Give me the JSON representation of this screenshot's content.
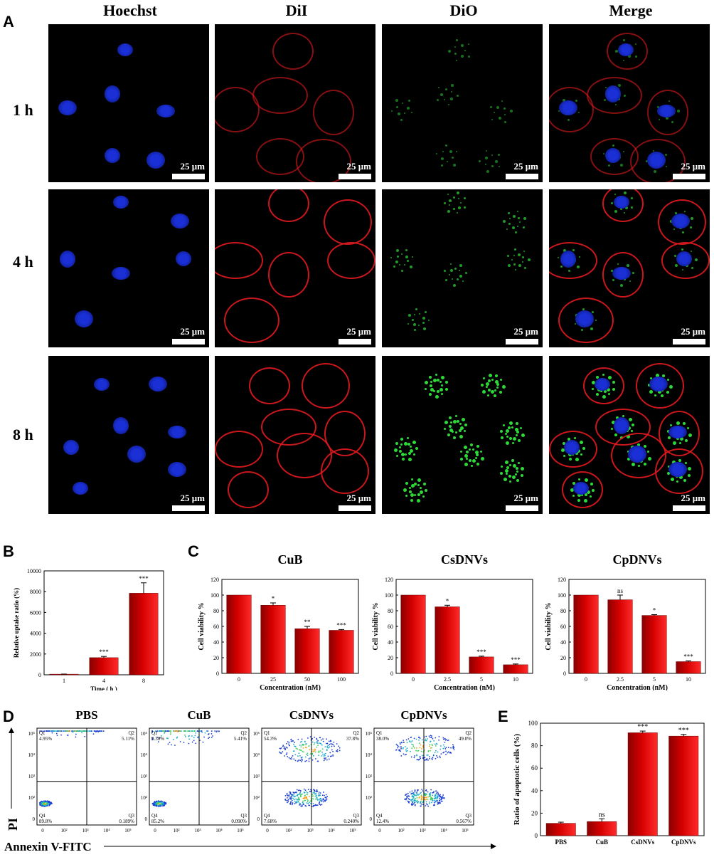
{
  "panels": {
    "A": "A",
    "B": "B",
    "C": "C",
    "D": "D",
    "E": "E"
  },
  "panel_a": {
    "columns": [
      "Hoechst",
      "DiI",
      "DiO",
      "Merge"
    ],
    "rows": [
      "1 h",
      "4 h",
      "8 h"
    ],
    "scale_bar": "25 μm",
    "colors": {
      "hoechst": "#1a2fd6",
      "dii": "#e0191e",
      "dio": "#2ee63a"
    }
  },
  "chart_data": [
    {
      "panel": "B",
      "type": "bar",
      "categories": [
        "1",
        "4",
        "8"
      ],
      "values": [
        60,
        1650,
        7850
      ],
      "errors": [
        10,
        120,
        1000
      ],
      "significance": [
        "",
        "***",
        "***"
      ],
      "xlabel": "Time ( h )",
      "ylabel": "Relative uptake ratio (%)",
      "ylim": [
        0,
        10000
      ],
      "yticks": [
        "0",
        "2000",
        "4000",
        "6000",
        "8000",
        "10000"
      ],
      "color": "#d40000"
    },
    {
      "panel": "C",
      "type": "bar",
      "title": "CuB",
      "categories": [
        "0",
        "25",
        "50",
        "100"
      ],
      "values": [
        100,
        87,
        57,
        55
      ],
      "errors": [
        0,
        3,
        3,
        1
      ],
      "significance": [
        "",
        "*",
        "**",
        "***"
      ],
      "xlabel": "Concentration (nM)",
      "ylabel": "Cell viability %",
      "ylim": [
        0,
        120
      ],
      "yticks": [
        "0",
        "20",
        "40",
        "60",
        "80",
        "100",
        "120"
      ],
      "color": "#d40000"
    },
    {
      "panel": "C",
      "type": "bar",
      "title": "CsDNVs",
      "categories": [
        "0",
        "2.5",
        "5",
        "10"
      ],
      "values": [
        100,
        85,
        21,
        11
      ],
      "errors": [
        0,
        2,
        1,
        1
      ],
      "significance": [
        "",
        "*",
        "***",
        "***"
      ],
      "xlabel": "Concentration (nM)",
      "ylabel": "Cell viability %",
      "ylim": [
        0,
        120
      ],
      "yticks": [
        "0",
        "20",
        "40",
        "60",
        "80",
        "100",
        "120"
      ],
      "color": "#d40000"
    },
    {
      "panel": "C",
      "type": "bar",
      "title": "CpDNVs",
      "categories": [
        "0",
        "2.5",
        "5",
        "10"
      ],
      "values": [
        100,
        94,
        74,
        15
      ],
      "errors": [
        0,
        6,
        1,
        1
      ],
      "significance": [
        "",
        "ns",
        "*",
        "***"
      ],
      "xlabel": "Concentration (nM)",
      "ylabel": "Cell viability %",
      "ylim": [
        0,
        120
      ],
      "yticks": [
        "0",
        "20",
        "40",
        "60",
        "80",
        "100",
        "120"
      ],
      "color": "#d40000"
    },
    {
      "panel": "D",
      "type": "scatter",
      "xlabel": "Annexin V-FITC",
      "ylabel": "PI",
      "tick_labels": [
        "0",
        "10²",
        "10³",
        "10⁴",
        "10⁵"
      ],
      "plots": [
        {
          "title": "PBS",
          "Q1": "4.95%",
          "Q2": "5.11%",
          "Q3": "0.189%",
          "Q4": "89.8%"
        },
        {
          "title": "CuB",
          "Q1": "9.30%",
          "Q2": "5.41%",
          "Q3": "0.090%",
          "Q4": "85.2%"
        },
        {
          "title": "CsDNVs",
          "Q1": "54.3%",
          "Q2": "37.8%",
          "Q3": "0.240%",
          "Q4": "7.68%"
        },
        {
          "title": "CpDNVs",
          "Q1": "38.0%",
          "Q2": "49.0%",
          "Q3": "0.567%",
          "Q4": "12.4%"
        }
      ],
      "quadrant_labels": [
        "Q1",
        "Q2",
        "Q3",
        "Q4"
      ]
    },
    {
      "panel": "E",
      "type": "bar",
      "categories": [
        "PBS",
        "CuB",
        "CsDNVs",
        "CpDNVs"
      ],
      "values": [
        11,
        12.5,
        91.5,
        88.5
      ],
      "errors": [
        1,
        2.5,
        1.5,
        1.5
      ],
      "significance": [
        "",
        "ns",
        "***",
        "***"
      ],
      "ylabel": "Ratio of apoptotic cells (%)",
      "ylim": [
        0,
        100
      ],
      "yticks": [
        "0",
        "20",
        "40",
        "60",
        "80",
        "100"
      ],
      "color": "#d40000"
    }
  ]
}
